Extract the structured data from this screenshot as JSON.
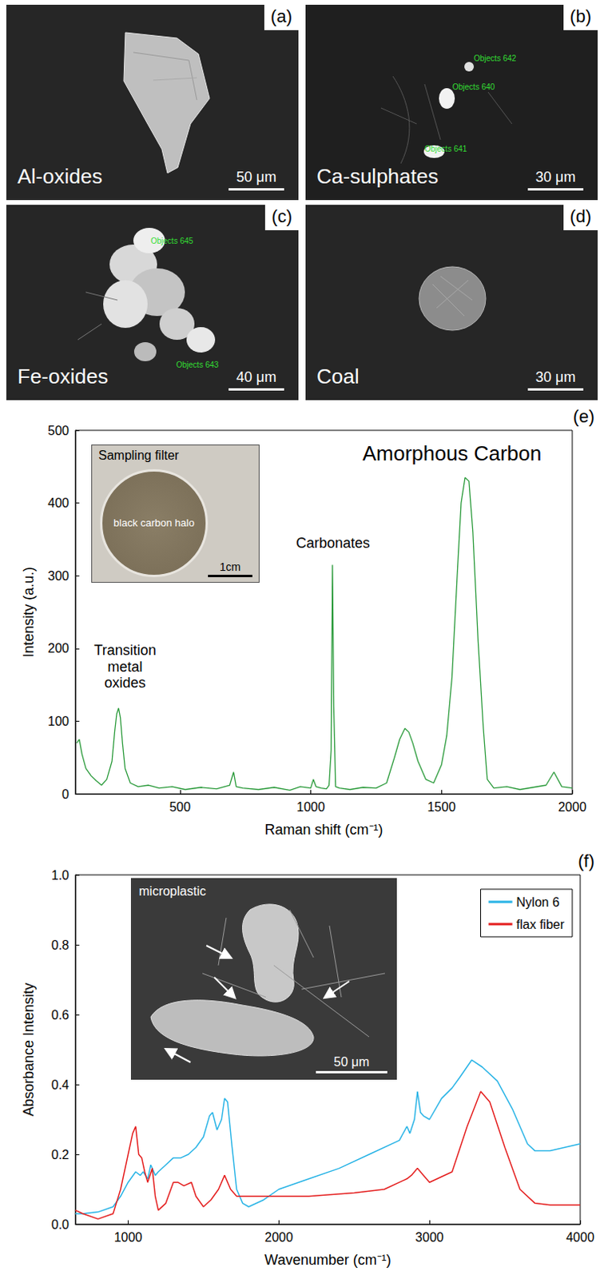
{
  "image_panels": [
    {
      "panel_label": "(a)",
      "label": "Al-oxides",
      "scale_bar": "50 μm"
    },
    {
      "panel_label": "(b)",
      "label": "Ca-sulphates",
      "scale_bar": "30 μm",
      "objects": [
        "Objects 642",
        "Objects 640",
        "Objects 641"
      ]
    },
    {
      "panel_label": "(c)",
      "label": "Fe-oxides",
      "scale_bar": "40 μm",
      "objects": [
        "Objects 645",
        "Objects 643"
      ]
    },
    {
      "panel_label": "(d)",
      "label": "Coal",
      "scale_bar": "30 μm"
    }
  ],
  "chart_data": [
    {
      "type": "line",
      "panel_label": "(e)",
      "x_label": "Raman shift (cm⁻¹)",
      "y_label": "Intensity (a.u.)",
      "x": [
        105,
        115,
        125,
        140,
        160,
        180,
        200,
        220,
        240,
        250,
        258,
        265,
        272,
        280,
        290,
        310,
        340,
        380,
        420,
        470,
        520,
        580,
        640,
        690,
        705,
        715,
        740,
        800,
        860,
        920,
        960,
        1000,
        1010,
        1020,
        1040,
        1060,
        1070,
        1078,
        1083,
        1088,
        1095,
        1110,
        1150,
        1200,
        1250,
        1290,
        1320,
        1340,
        1360,
        1375,
        1390,
        1410,
        1440,
        1470,
        1500,
        1520,
        1540,
        1560,
        1575,
        1590,
        1605,
        1620,
        1640,
        1660,
        1675,
        1700,
        1750,
        1800,
        1850,
        1900,
        1930,
        1960,
        2000
      ],
      "values": [
        70,
        75,
        55,
        35,
        25,
        18,
        12,
        20,
        45,
        85,
        110,
        118,
        105,
        70,
        35,
        15,
        10,
        12,
        8,
        10,
        6,
        9,
        7,
        12,
        30,
        10,
        8,
        6,
        9,
        5,
        10,
        8,
        20,
        10,
        8,
        7,
        12,
        60,
        315,
        120,
        10,
        8,
        6,
        9,
        8,
        15,
        50,
        75,
        90,
        85,
        70,
        45,
        20,
        15,
        40,
        80,
        160,
        300,
        400,
        435,
        430,
        360,
        210,
        90,
        20,
        8,
        10,
        6,
        9,
        12,
        30,
        10,
        8
      ],
      "color": "#2a9a3a",
      "xlim": [
        100,
        2000
      ],
      "xticks": [
        500,
        1000,
        1500,
        2000
      ],
      "ylim": [
        0,
        500
      ],
      "yticks": [
        0,
        100,
        200,
        300,
        400,
        500
      ],
      "grid": false,
      "annotations": [
        {
          "text": "Transition metal oxides",
          "x": 290,
          "y": 175
        },
        {
          "text": "Carbonates",
          "x": 1085,
          "y": 345
        },
        {
          "text": "Amorphous Carbon",
          "x": 1540,
          "y": 468
        }
      ],
      "inset": {
        "title": "Sampling filter",
        "label": "black carbon halo",
        "scale_bar": "1cm"
      }
    },
    {
      "type": "line",
      "panel_label": "(f)",
      "x_label": "Wavenumber (cm⁻¹)",
      "y_label": "Absorbance Intensity",
      "series": [
        {
          "name": "Nylon 6",
          "color": "#2ab4e6",
          "x": [
            650,
            700,
            800,
            900,
            950,
            1000,
            1050,
            1080,
            1100,
            1130,
            1150,
            1180,
            1200,
            1250,
            1300,
            1350,
            1400,
            1450,
            1500,
            1540,
            1560,
            1590,
            1620,
            1640,
            1660,
            1690,
            1720,
            1760,
            1800,
            1900,
            2000,
            2200,
            2400,
            2600,
            2800,
            2850,
            2870,
            2900,
            2920,
            2940,
            2960,
            3000,
            3080,
            3150,
            3200,
            3280,
            3350,
            3450,
            3550,
            3650,
            3700,
            3800,
            4000
          ],
          "values": [
            0.03,
            0.03,
            0.035,
            0.05,
            0.08,
            0.12,
            0.15,
            0.14,
            0.15,
            0.13,
            0.17,
            0.14,
            0.15,
            0.17,
            0.19,
            0.19,
            0.2,
            0.22,
            0.25,
            0.31,
            0.32,
            0.27,
            0.3,
            0.36,
            0.35,
            0.22,
            0.1,
            0.06,
            0.05,
            0.07,
            0.1,
            0.13,
            0.16,
            0.2,
            0.24,
            0.28,
            0.26,
            0.3,
            0.38,
            0.32,
            0.31,
            0.3,
            0.36,
            0.39,
            0.42,
            0.47,
            0.45,
            0.41,
            0.33,
            0.23,
            0.21,
            0.21,
            0.23
          ]
        },
        {
          "name": "flax fiber",
          "color": "#e41e1e",
          "x": [
            650,
            700,
            800,
            900,
            950,
            1000,
            1030,
            1050,
            1070,
            1090,
            1110,
            1130,
            1160,
            1180,
            1200,
            1250,
            1300,
            1330,
            1370,
            1420,
            1450,
            1500,
            1550,
            1600,
            1640,
            1680,
            1720,
            1800,
            2000,
            2200,
            2500,
            2700,
            2850,
            2880,
            2920,
            2960,
            3000,
            3150,
            3250,
            3340,
            3400,
            3500,
            3600,
            3700,
            3800,
            4000
          ],
          "values": [
            0.04,
            0.03,
            0.015,
            0.03,
            0.1,
            0.2,
            0.26,
            0.28,
            0.2,
            0.19,
            0.15,
            0.12,
            0.16,
            0.08,
            0.04,
            0.06,
            0.12,
            0.12,
            0.11,
            0.12,
            0.08,
            0.05,
            0.07,
            0.1,
            0.14,
            0.1,
            0.08,
            0.08,
            0.08,
            0.08,
            0.09,
            0.1,
            0.13,
            0.14,
            0.16,
            0.14,
            0.12,
            0.15,
            0.28,
            0.38,
            0.35,
            0.22,
            0.1,
            0.06,
            0.055,
            0.055
          ]
        }
      ],
      "xlim": [
        650,
        4000
      ],
      "xticks": [
        1000,
        2000,
        3000,
        4000
      ],
      "ylim": [
        0,
        1
      ],
      "yticks": [
        {
          "value": 0,
          "label": "0.0"
        },
        0.2,
        0.4,
        0.6,
        0.8,
        {
          "value": 1,
          "label": "1.0"
        }
      ],
      "grid": false,
      "legend": "top-right",
      "inset": {
        "title": "microplastic",
        "scale_bar": "50 μm"
      }
    }
  ]
}
